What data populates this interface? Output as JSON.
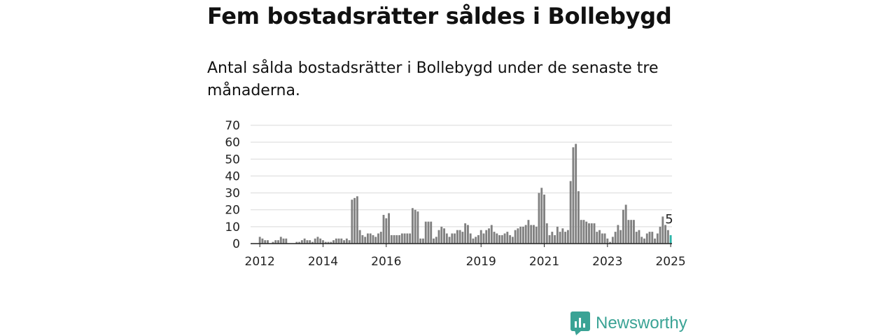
{
  "title": "Fem bostadsrätter såldes i Bollebygd",
  "subtitle": "Antal sålda bostadsrätter i Bollebygd under de senaste tre månaderna.",
  "brand": "Newsworthy",
  "colors": {
    "bar": "#808080",
    "highlight": "#2bb5a8",
    "brand": "#3aa395"
  },
  "chart_data": {
    "type": "bar",
    "start": "2011-10",
    "ylim": [
      0,
      70
    ],
    "yticks": [
      0,
      10,
      20,
      30,
      40,
      50,
      60,
      70
    ],
    "xticks": [
      "2012",
      "2014",
      "2016",
      "2019",
      "2021",
      "2023",
      "2025"
    ],
    "grid": true,
    "last_label": "5",
    "values": [
      0,
      0,
      0,
      4,
      3,
      2,
      2,
      0,
      1,
      2,
      2,
      4,
      3,
      3,
      0,
      0,
      0,
      1,
      1,
      2,
      3,
      2,
      2,
      1,
      3,
      4,
      3,
      2,
      1,
      1,
      1,
      2,
      3,
      3,
      3,
      2,
      3,
      2,
      26,
      27,
      28,
      8,
      5,
      4,
      6,
      6,
      5,
      4,
      6,
      7,
      17,
      15,
      18,
      5,
      5,
      5,
      5,
      6,
      6,
      6,
      6,
      21,
      20,
      19,
      3,
      3,
      13,
      13,
      13,
      3,
      4,
      8,
      10,
      9,
      6,
      4,
      6,
      6,
      8,
      8,
      7,
      12,
      11,
      6,
      3,
      4,
      5,
      8,
      6,
      8,
      9,
      11,
      7,
      6,
      5,
      5,
      6,
      7,
      5,
      4,
      8,
      9,
      10,
      10,
      11,
      14,
      11,
      11,
      10,
      30,
      33,
      29,
      12,
      5,
      7,
      5,
      10,
      7,
      9,
      7,
      8,
      37,
      57,
      59,
      31,
      14,
      14,
      13,
      12,
      12,
      12,
      7,
      8,
      6,
      6,
      3,
      1,
      4,
      7,
      11,
      8,
      20,
      23,
      14,
      14,
      14,
      7,
      8,
      4,
      3,
      6,
      7,
      7,
      3,
      6,
      10,
      16,
      11,
      8,
      5
    ]
  }
}
